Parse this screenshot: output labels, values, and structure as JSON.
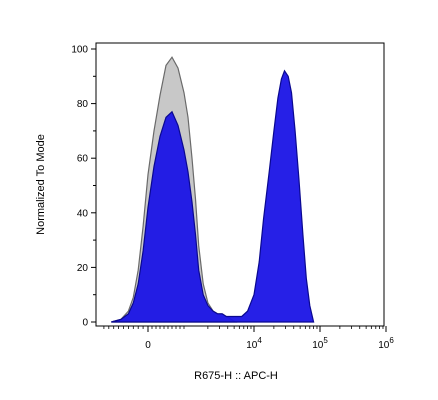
{
  "chart_data": {
    "type": "area",
    "title": "",
    "xlabel": "R675-H :: APC-H",
    "ylabel": "Normalized To Mode",
    "x_scale": "biexponential",
    "xlim": [
      -2000,
      1000000
    ],
    "ylim": [
      0,
      100
    ],
    "grid": false,
    "legend": "none",
    "y_ticks": [
      {
        "value": 0,
        "label": "0"
      },
      {
        "value": 20,
        "label": "20"
      },
      {
        "value": 40,
        "label": "40"
      },
      {
        "value": 60,
        "label": "60"
      },
      {
        "value": 80,
        "label": "80"
      },
      {
        "value": 100,
        "label": "100"
      }
    ],
    "x_ticks": [
      {
        "value": 0,
        "base": "0",
        "exp": ""
      },
      {
        "value": 10000,
        "base": "10",
        "exp": "4"
      },
      {
        "value": 100000,
        "base": "10",
        "exp": "5"
      },
      {
        "value": 1000000,
        "base": "10",
        "exp": "6"
      }
    ],
    "series": [
      {
        "color": "#c8c8c8",
        "edge_color": "#6a6a6a",
        "x": [
          -750,
          -550,
          -400,
          -300,
          -200,
          -100,
          0,
          150,
          300,
          450,
          600,
          750,
          900,
          1000,
          1150,
          1300,
          1450,
          1700,
          2000,
          2400,
          2800,
          3300,
          3800,
          4500,
          5200
        ],
        "y": [
          0,
          1,
          4,
          9,
          19,
          35,
          54,
          70,
          83,
          94,
          97,
          93,
          84,
          75,
          60,
          45,
          28,
          14,
          7,
          4,
          3,
          3,
          2,
          1,
          0
        ]
      },
      {
        "color": "#1a14e6",
        "edge_color": "#0a0890",
        "x": [
          -750,
          -550,
          -400,
          -300,
          -200,
          -100,
          0,
          150,
          300,
          450,
          600,
          750,
          900,
          1000,
          1150,
          1300,
          1450,
          1700,
          2000,
          2400,
          2800,
          3300,
          3800,
          4500,
          5200,
          6500,
          8000,
          10000,
          12000,
          14000,
          17000,
          20000,
          23000,
          26000,
          29000,
          33000,
          37000,
          42000,
          48000,
          55000,
          62000,
          70000,
          80000
        ],
        "y": [
          0,
          1,
          3,
          7,
          14,
          26,
          42,
          57,
          68,
          75,
          77,
          72,
          63,
          55,
          44,
          32,
          19,
          10,
          6,
          4,
          3,
          3,
          2,
          2,
          2,
          2,
          4,
          10,
          22,
          38,
          55,
          70,
          82,
          89,
          92,
          90,
          84,
          70,
          52,
          32,
          16,
          6,
          0
        ]
      }
    ]
  }
}
